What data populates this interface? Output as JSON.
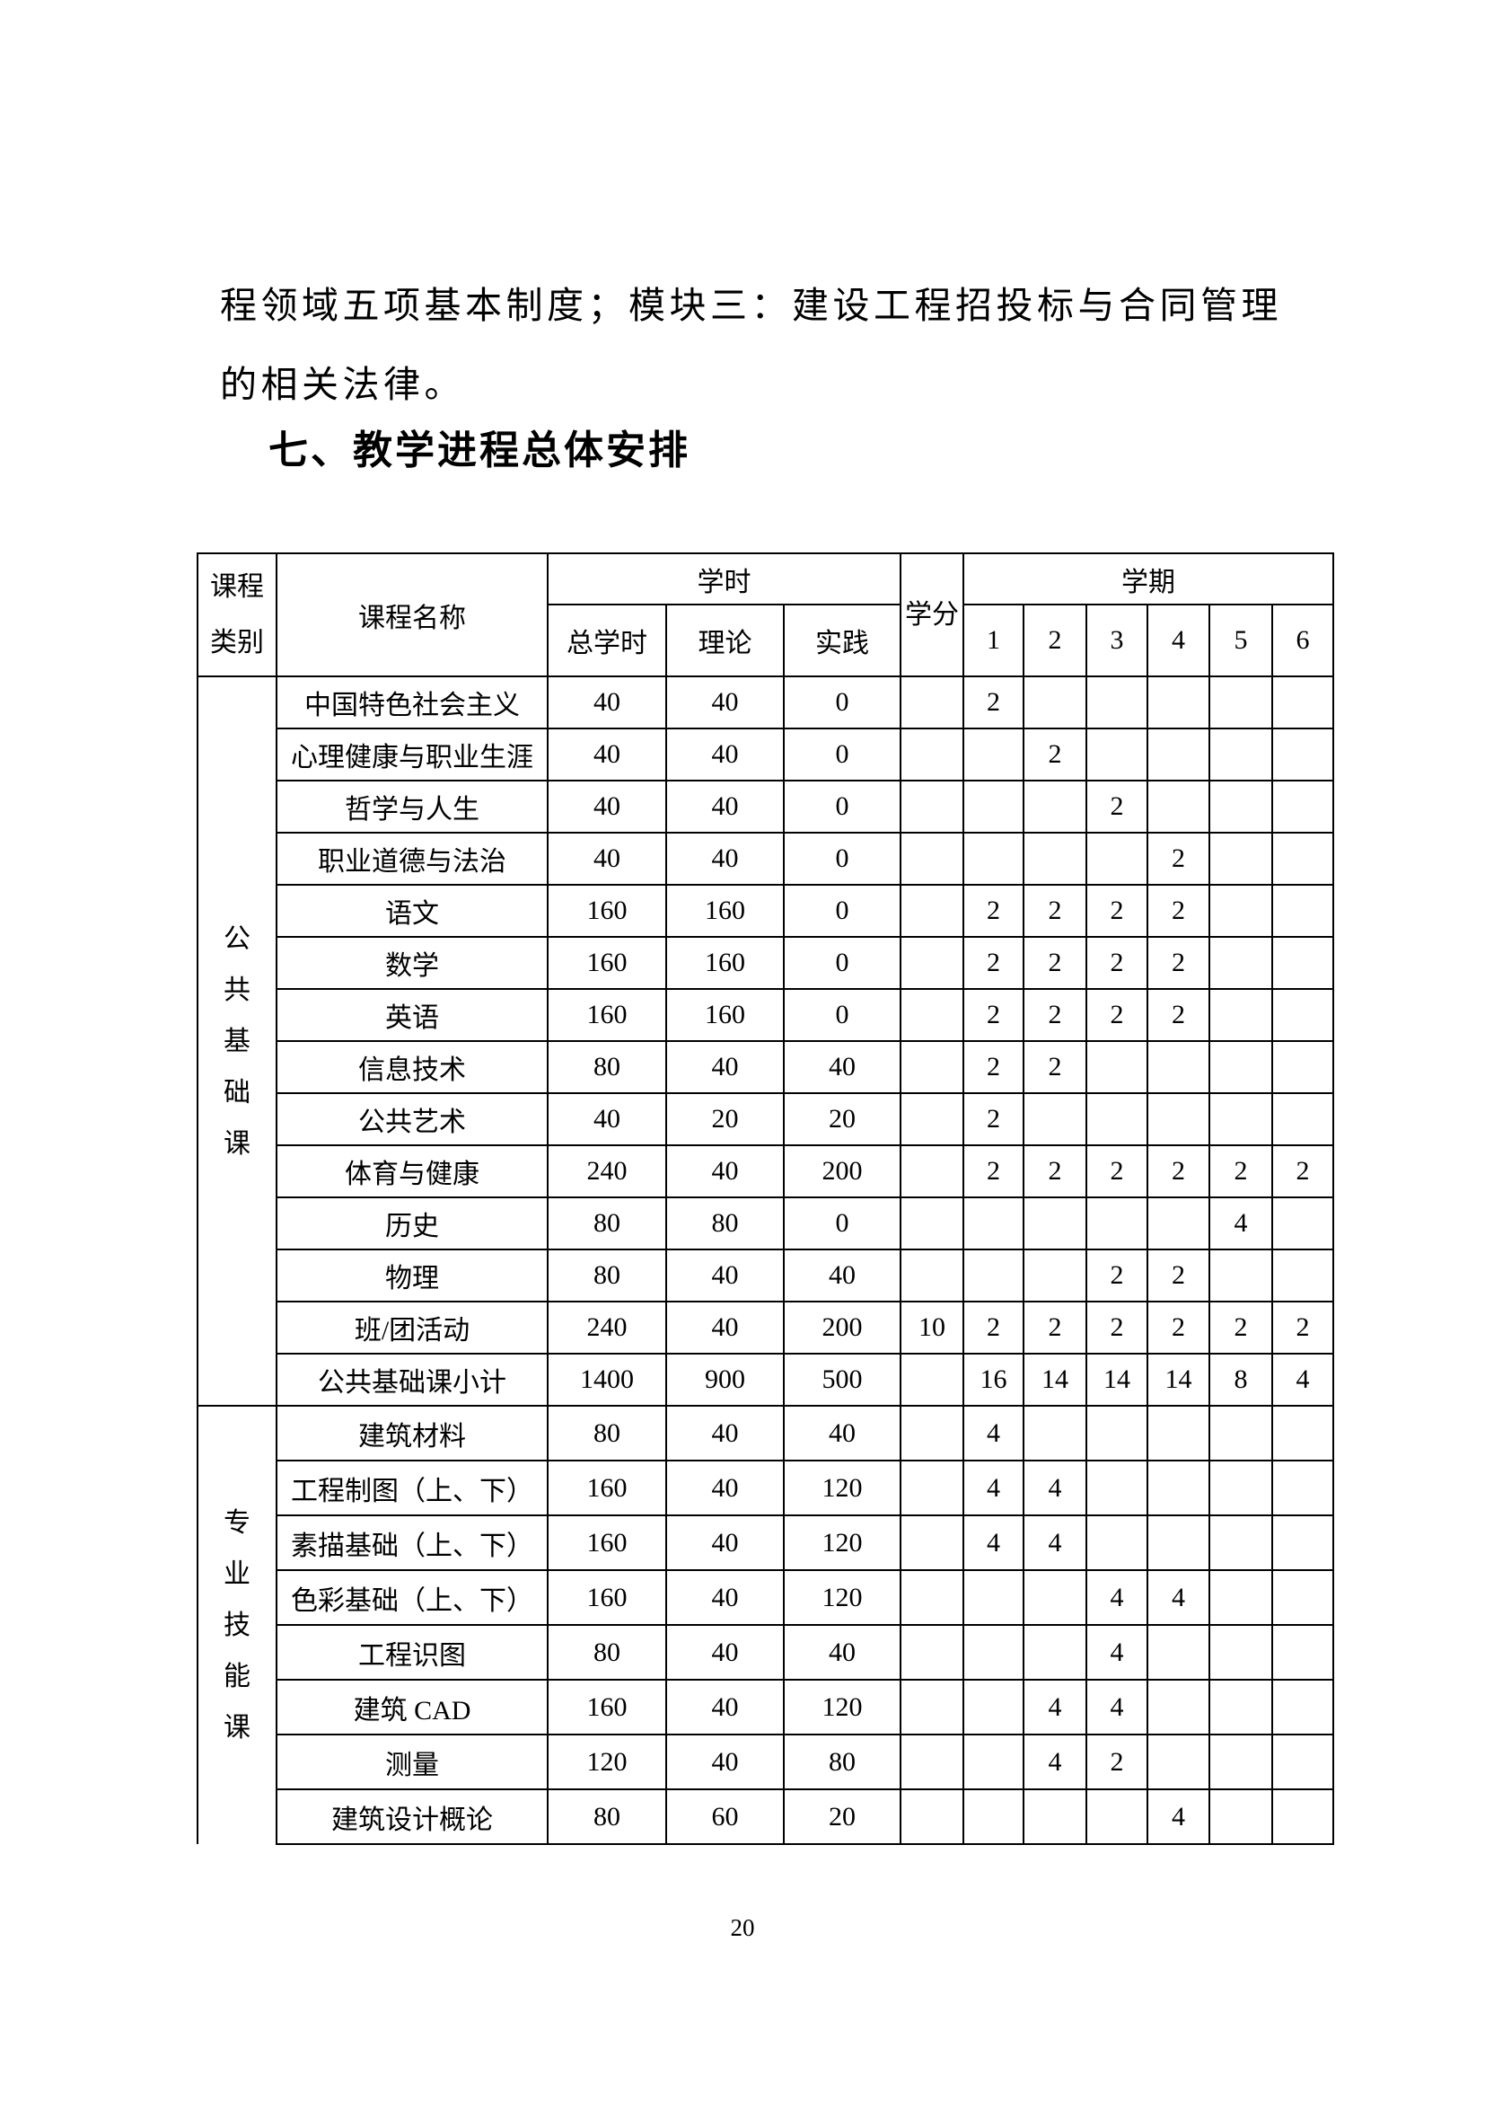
{
  "page": {
    "paragraph_line1": "程领域五项基本制度；模块三：建设工程招投标与合同管理",
    "paragraph_line2": "的相关法律。",
    "heading": "七、教学进程总体安排",
    "page_number": "20"
  },
  "table": {
    "header": {
      "category": "课程类别",
      "course_name": "课程名称",
      "hours_group": "学时",
      "total_hours": "总学时",
      "theory": "理论",
      "practice": "实践",
      "credits": "学分",
      "semester_group": "学期",
      "semesters": [
        "1",
        "2",
        "3",
        "4",
        "5",
        "6"
      ]
    },
    "sections": [
      {
        "category": "公共基础课",
        "rows": [
          {
            "name": "中国特色社会主义",
            "total": "40",
            "theory": "40",
            "practice": "0",
            "credits": "",
            "semesters": [
              "2",
              "",
              "",
              "",
              "",
              ""
            ]
          },
          {
            "name": "心理健康与职业生涯",
            "total": "40",
            "theory": "40",
            "practice": "0",
            "credits": "",
            "semesters": [
              "",
              "2",
              "",
              "",
              "",
              ""
            ]
          },
          {
            "name": "哲学与人生",
            "total": "40",
            "theory": "40",
            "practice": "0",
            "credits": "",
            "semesters": [
              "",
              "",
              "2",
              "",
              "",
              ""
            ]
          },
          {
            "name": "职业道德与法治",
            "total": "40",
            "theory": "40",
            "practice": "0",
            "credits": "",
            "semesters": [
              "",
              "",
              "",
              "2",
              "",
              ""
            ]
          },
          {
            "name": "语文",
            "total": "160",
            "theory": "160",
            "practice": "0",
            "credits": "",
            "semesters": [
              "2",
              "2",
              "2",
              "2",
              "",
              ""
            ]
          },
          {
            "name": "数学",
            "total": "160",
            "theory": "160",
            "practice": "0",
            "credits": "",
            "semesters": [
              "2",
              "2",
              "2",
              "2",
              "",
              ""
            ]
          },
          {
            "name": "英语",
            "total": "160",
            "theory": "160",
            "practice": "0",
            "credits": "",
            "semesters": [
              "2",
              "2",
              "2",
              "2",
              "",
              ""
            ]
          },
          {
            "name": "信息技术",
            "total": "80",
            "theory": "40",
            "practice": "40",
            "credits": "",
            "semesters": [
              "2",
              "2",
              "",
              "",
              "",
              ""
            ]
          },
          {
            "name": "公共艺术",
            "total": "40",
            "theory": "20",
            "practice": "20",
            "credits": "",
            "semesters": [
              "2",
              "",
              "",
              "",
              "",
              ""
            ]
          },
          {
            "name": "体育与健康",
            "total": "240",
            "theory": "40",
            "practice": "200",
            "credits": "",
            "semesters": [
              "2",
              "2",
              "2",
              "2",
              "2",
              "2"
            ]
          },
          {
            "name": "历史",
            "total": "80",
            "theory": "80",
            "practice": "0",
            "credits": "",
            "semesters": [
              "",
              "",
              "",
              "",
              "4",
              ""
            ]
          },
          {
            "name": "物理",
            "total": "80",
            "theory": "40",
            "practice": "40",
            "credits": "",
            "semesters": [
              "",
              "",
              "2",
              "2",
              "",
              ""
            ]
          },
          {
            "name": "班/团活动",
            "total": "240",
            "theory": "40",
            "practice": "200",
            "credits": "10",
            "semesters": [
              "2",
              "2",
              "2",
              "2",
              "2",
              "2"
            ]
          },
          {
            "name": "公共基础课小计",
            "total": "1400",
            "theory": "900",
            "practice": "500",
            "credits": "",
            "semesters": [
              "16",
              "14",
              "14",
              "14",
              "8",
              "4"
            ]
          }
        ]
      },
      {
        "category": "专业技能课",
        "rows": [
          {
            "name": "建筑材料",
            "total": "80",
            "theory": "40",
            "practice": "40",
            "credits": "",
            "semesters": [
              "4",
              "",
              "",
              "",
              "",
              ""
            ]
          },
          {
            "name": "工程制图（上、下）",
            "total": "160",
            "theory": "40",
            "practice": "120",
            "credits": "",
            "semesters": [
              "4",
              "4",
              "",
              "",
              "",
              ""
            ]
          },
          {
            "name": "素描基础（上、下）",
            "total": "160",
            "theory": "40",
            "practice": "120",
            "credits": "",
            "semesters": [
              "4",
              "4",
              "",
              "",
              "",
              ""
            ]
          },
          {
            "name": "色彩基础（上、下）",
            "total": "160",
            "theory": "40",
            "practice": "120",
            "credits": "",
            "semesters": [
              "",
              "",
              "4",
              "4",
              "",
              ""
            ]
          },
          {
            "name": "工程识图",
            "total": "80",
            "theory": "40",
            "practice": "40",
            "credits": "",
            "semesters": [
              "",
              "",
              "4",
              "",
              "",
              ""
            ]
          },
          {
            "name": "建筑 CAD",
            "total": "160",
            "theory": "40",
            "practice": "120",
            "credits": "",
            "semesters": [
              "",
              "4",
              "4",
              "",
              "",
              ""
            ]
          },
          {
            "name": "测量",
            "total": "120",
            "theory": "40",
            "practice": "80",
            "credits": "",
            "semesters": [
              "",
              "4",
              "2",
              "",
              "",
              ""
            ]
          },
          {
            "name": "建筑设计概论",
            "total": "80",
            "theory": "60",
            "practice": "20",
            "credits": "",
            "semesters": [
              "",
              "",
              "",
              "4",
              "",
              ""
            ]
          }
        ]
      }
    ]
  }
}
